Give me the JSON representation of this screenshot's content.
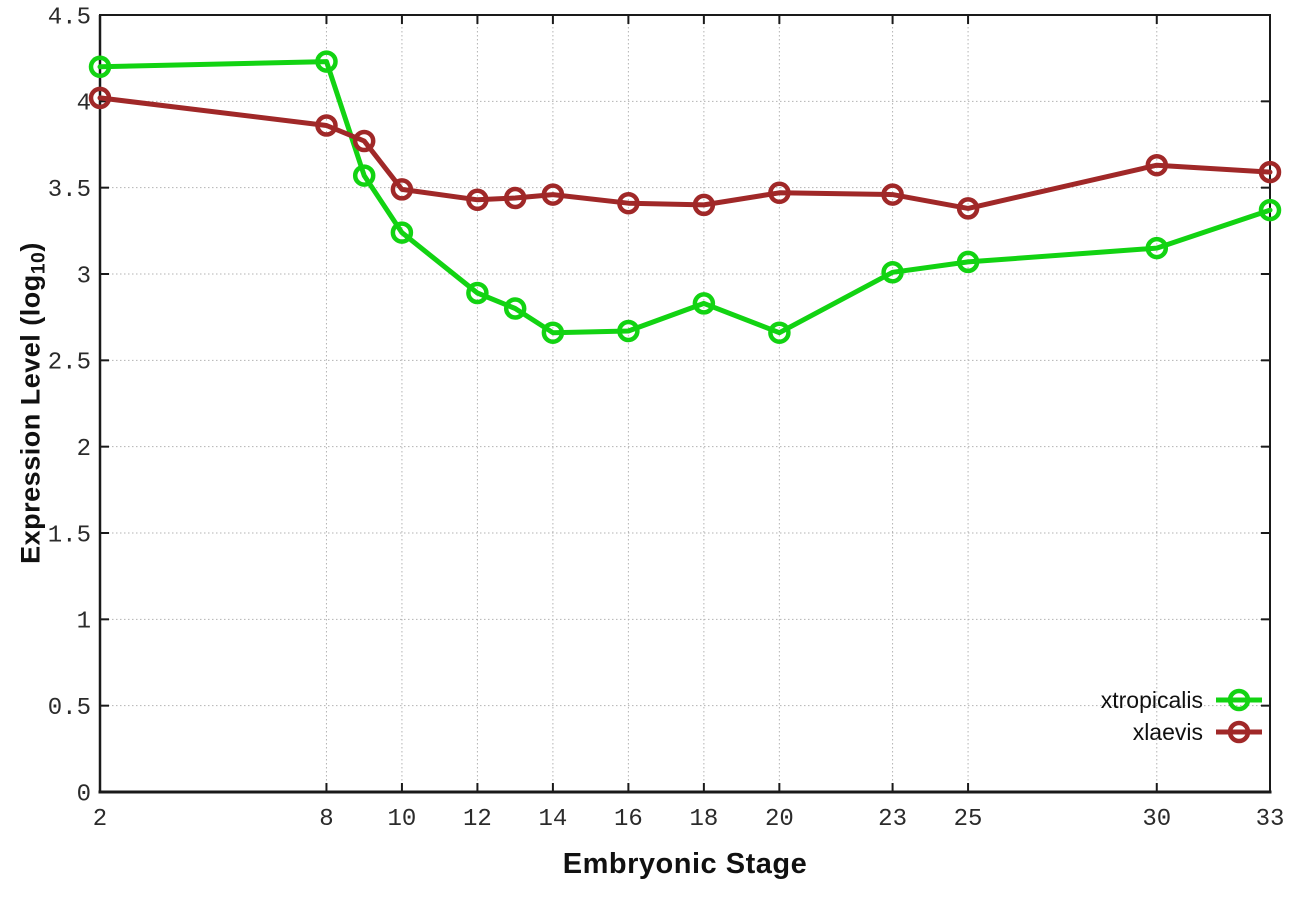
{
  "figure": {
    "background": "#ffffff",
    "axis_color": "#1a1a1a",
    "grid_color": "#b3b3b3",
    "tick_label_color": "#2b2b2b"
  },
  "titles": {
    "xlabel": "Embryonic Stage",
    "ylabel_prefix": "Expression Level (log",
    "ylabel_sub": "10",
    "ylabel_suffix": ")"
  },
  "legend": {
    "position": "bottom-right",
    "items": [
      {
        "label": "xtropicalis",
        "color": "#12d312"
      },
      {
        "label": "xlaevis",
        "color": "#a02828"
      }
    ]
  },
  "chart_data": {
    "type": "line",
    "title": "",
    "xlabel": "Embryonic Stage",
    "ylabel": "Expression Level (log10)",
    "x": [
      2,
      8,
      9,
      10,
      12,
      13,
      14,
      16,
      18,
      20,
      23,
      25,
      30,
      33
    ],
    "series": [
      {
        "name": "xtropicalis",
        "color": "#12d312",
        "marker": "open-circle",
        "values": [
          4.2,
          4.23,
          3.57,
          3.24,
          2.89,
          2.8,
          2.66,
          2.67,
          2.83,
          2.66,
          3.01,
          3.07,
          3.15,
          3.37
        ]
      },
      {
        "name": "xlaevis",
        "color": "#a02828",
        "marker": "open-circle",
        "values": [
          4.02,
          3.86,
          3.77,
          3.49,
          3.43,
          3.44,
          3.46,
          3.41,
          3.4,
          3.47,
          3.46,
          3.38,
          3.63,
          3.59
        ]
      }
    ],
    "xlim": [
      2,
      33
    ],
    "ylim": [
      0,
      4.5
    ],
    "xticks": [
      2,
      8,
      10,
      12,
      14,
      16,
      18,
      20,
      23,
      25,
      30,
      33
    ],
    "xtick_labels": [
      "2",
      "8",
      "10",
      "12",
      "14",
      "16",
      "18",
      "20",
      "23",
      "25",
      "30",
      "33"
    ],
    "yticks": [
      0,
      0.5,
      1,
      1.5,
      2,
      2.5,
      3,
      3.5,
      4,
      4.5
    ],
    "ytick_labels": [
      "0",
      "0.5",
      "1",
      "1.5",
      "2",
      "2.5",
      "3",
      "3.5",
      "4",
      "4.5"
    ],
    "grid": "dotted-both-axes",
    "legend_position": "bottom-right-inside"
  }
}
